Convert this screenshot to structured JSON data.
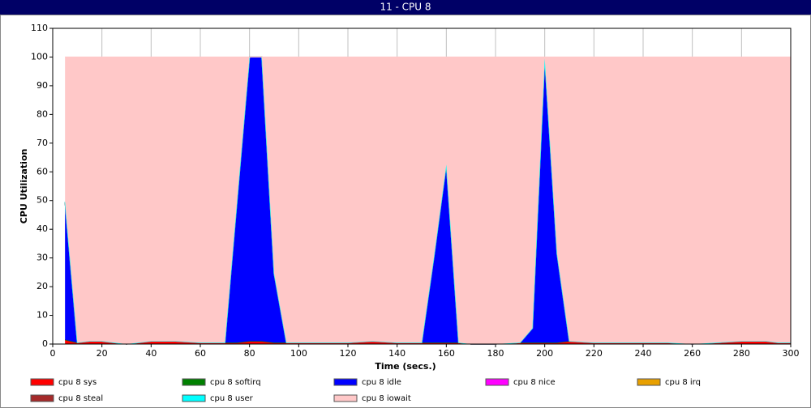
{
  "chart_data": {
    "type": "stacked-area",
    "title": "11 - CPU 8",
    "xlabel": "Time (secs.)",
    "ylabel": "CPU Utilization",
    "x": [
      5,
      10,
      15,
      20,
      25,
      30,
      40,
      50,
      60,
      70,
      75,
      80,
      85,
      90,
      95,
      100,
      110,
      120,
      130,
      140,
      150,
      155,
      160,
      165,
      170,
      180,
      190,
      195,
      200,
      205,
      210,
      220,
      230,
      240,
      250,
      260,
      270,
      280,
      290,
      295,
      300
    ],
    "series": [
      {
        "name": "cpu 8 sys",
        "color": "#ff0000",
        "values": [
          1.5,
          0.5,
          1,
          1,
          0.5,
          0,
          1,
          1,
          0.5,
          0.5,
          0.5,
          1,
          1,
          0.5,
          0.5,
          0.5,
          0.5,
          0.5,
          1,
          0.5,
          0.5,
          0.5,
          0.5,
          0.5,
          0,
          0,
          0.5,
          0.5,
          0.5,
          0.5,
          1,
          0.5,
          0.5,
          0.5,
          0.5,
          0,
          0.5,
          1,
          1,
          0.5,
          0.5
        ]
      },
      {
        "name": "cpu 8 softirq",
        "color": "#008000",
        "values": [
          0,
          0,
          0,
          0,
          0,
          0,
          0,
          0,
          0,
          0,
          0,
          0,
          0,
          0,
          0,
          0,
          0,
          0,
          0,
          0,
          0,
          0,
          0,
          0,
          0,
          0,
          0,
          0,
          0,
          0,
          0,
          0,
          0,
          0,
          0,
          0,
          0,
          0,
          0,
          0,
          0
        ]
      },
      {
        "name": "cpu 8 idle",
        "color": "#0000ff",
        "values": [
          48,
          0,
          0,
          0,
          0,
          0,
          0,
          0,
          0,
          0,
          50,
          99,
          99,
          24,
          0,
          0,
          0,
          0,
          0,
          0,
          0,
          30,
          62,
          0,
          0,
          0,
          0,
          5,
          99,
          31,
          0,
          0,
          0,
          0,
          0,
          0,
          0,
          0,
          0,
          0,
          0
        ]
      },
      {
        "name": "cpu 8 nice",
        "color": "#ff00ff",
        "values": [
          0,
          0,
          0,
          0,
          0,
          0,
          0,
          0,
          0,
          0,
          0,
          0,
          0,
          0,
          0,
          0,
          0,
          0,
          0,
          0,
          0,
          0,
          0,
          0,
          0,
          0,
          0,
          0,
          0,
          0,
          0,
          0,
          0,
          0,
          0,
          0,
          0,
          0,
          0,
          0,
          0
        ]
      },
      {
        "name": "cpu 8 irq",
        "color": "#e8a000",
        "values": [
          0,
          0,
          0,
          0,
          0,
          0,
          0,
          0,
          0,
          0,
          0,
          0,
          0,
          0,
          0,
          0,
          0,
          0,
          0,
          0,
          0,
          0,
          0,
          0,
          0,
          0,
          0,
          0,
          0,
          0,
          0,
          0,
          0,
          0,
          0,
          0,
          0,
          0,
          0,
          0,
          0
        ]
      },
      {
        "name": "cpu 8 steal",
        "color": "#a52a2a",
        "values": [
          0,
          0,
          0,
          0,
          0,
          0,
          0,
          0,
          0,
          0,
          0,
          0,
          0,
          0,
          0,
          0,
          0,
          0,
          0,
          0,
          0,
          0,
          0,
          0,
          0,
          0,
          0,
          0,
          0,
          0,
          0,
          0,
          0,
          0,
          0,
          0,
          0,
          0,
          0,
          0,
          0
        ]
      },
      {
        "name": "cpu 8 user",
        "color": "#00ffff",
        "values": [
          0,
          0,
          0,
          0,
          0,
          0,
          0,
          0,
          0,
          0,
          0,
          0,
          0,
          0,
          0,
          0,
          0,
          0,
          0,
          0,
          0,
          0,
          0,
          0,
          0,
          0,
          0,
          0,
          0,
          0,
          0,
          0,
          0,
          0,
          0,
          0,
          0,
          0,
          0,
          0,
          0
        ]
      },
      {
        "name": "cpu 8 iowait",
        "color": "#ffc8c8",
        "values": [
          50.5,
          99.5,
          99,
          99,
          99.5,
          100,
          99,
          99,
          99.5,
          99.5,
          49.5,
          0,
          0,
          75.5,
          99.5,
          99.5,
          99.5,
          99.5,
          99,
          99.5,
          99.5,
          69.5,
          37.5,
          99.5,
          100,
          100,
          99.5,
          94.5,
          0.5,
          68.5,
          99,
          99.5,
          99.5,
          99.5,
          99.5,
          100,
          99.5,
          99,
          99,
          99.5,
          99.5
        ]
      }
    ],
    "xlim": [
      0,
      300
    ],
    "xticks": [
      0,
      20,
      40,
      60,
      80,
      100,
      120,
      140,
      160,
      180,
      200,
      220,
      240,
      260,
      280,
      300
    ],
    "ylim": [
      0,
      110
    ],
    "yticks": [
      0,
      10,
      20,
      30,
      40,
      50,
      60,
      70,
      80,
      90,
      100,
      110
    ],
    "grid": "x"
  }
}
